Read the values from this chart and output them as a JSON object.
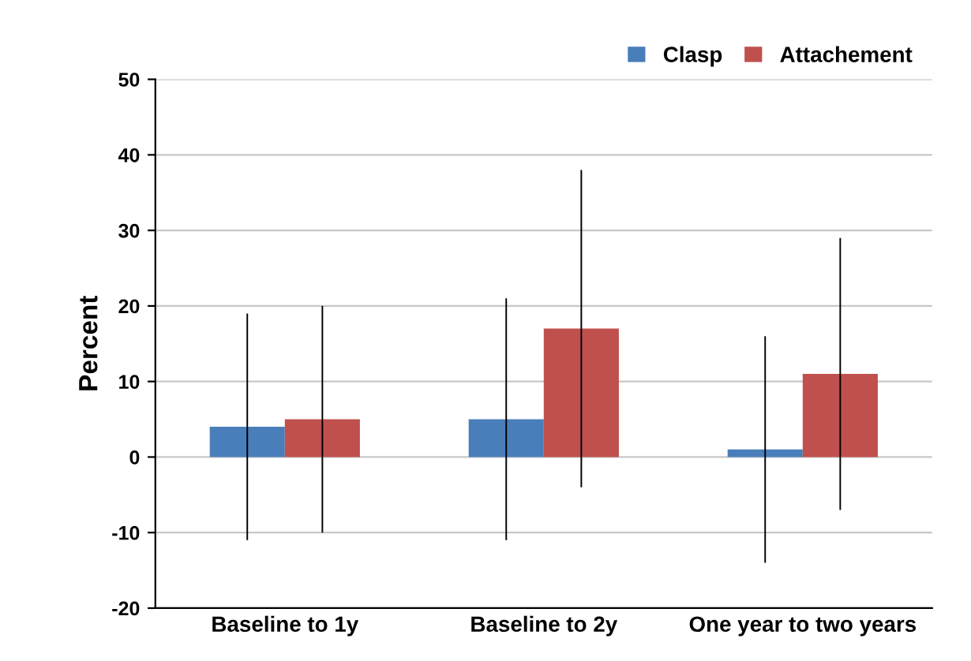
{
  "chart_data": {
    "type": "bar",
    "ylabel": "Percent",
    "categories": [
      "Baseline to 1y",
      "Baseline to 2y",
      "One year to two years"
    ],
    "series": [
      {
        "name": "Clasp",
        "color": "#4a7ebb",
        "values": [
          4,
          5,
          1
        ],
        "errors": [
          15,
          16,
          15
        ]
      },
      {
        "name": "Attachement",
        "color": "#c0504d",
        "values": [
          5,
          17,
          11
        ],
        "errors": [
          15,
          21,
          18
        ]
      }
    ],
    "ylim": [
      -20,
      50
    ],
    "yticks": [
      -20,
      -10,
      0,
      10,
      20,
      30,
      40,
      50
    ],
    "grid": "y",
    "legend": "top right"
  }
}
